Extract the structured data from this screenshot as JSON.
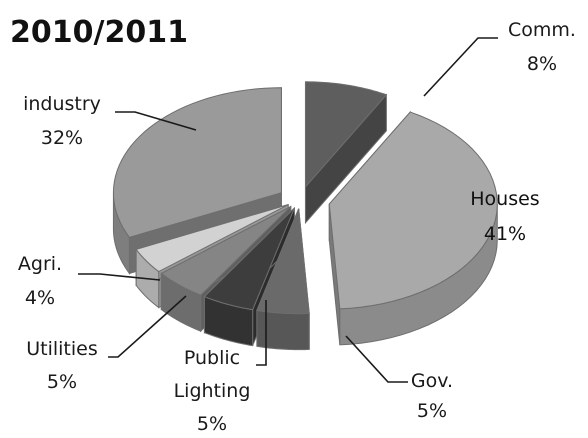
{
  "chart_data": {
    "type": "pie",
    "title": "2010/2011",
    "slices": [
      {
        "label": "Comm.",
        "value": 8,
        "value_label": "8%",
        "color": "#5e5e5e"
      },
      {
        "label": "Houses",
        "value": 41,
        "value_label": "41%",
        "color": "#a9a9a9"
      },
      {
        "label": "Gov.",
        "value": 5,
        "value_label": "5%",
        "color": "#6a6a6a"
      },
      {
        "label": [
          "Public",
          "Lighting"
        ],
        "value": 5,
        "value_label": "5%",
        "color": "#3d3d3d"
      },
      {
        "label": "Utilities",
        "value": 5,
        "value_label": "5%",
        "color": "#858585"
      },
      {
        "label": "Agri.",
        "value": 4,
        "value_label": "4%",
        "color": "#d2d2d2"
      },
      {
        "label": "industry",
        "value": 32,
        "value_label": "32%",
        "color": "#9a9a9a"
      }
    ],
    "style": "3d-exploded",
    "legend": "none"
  }
}
